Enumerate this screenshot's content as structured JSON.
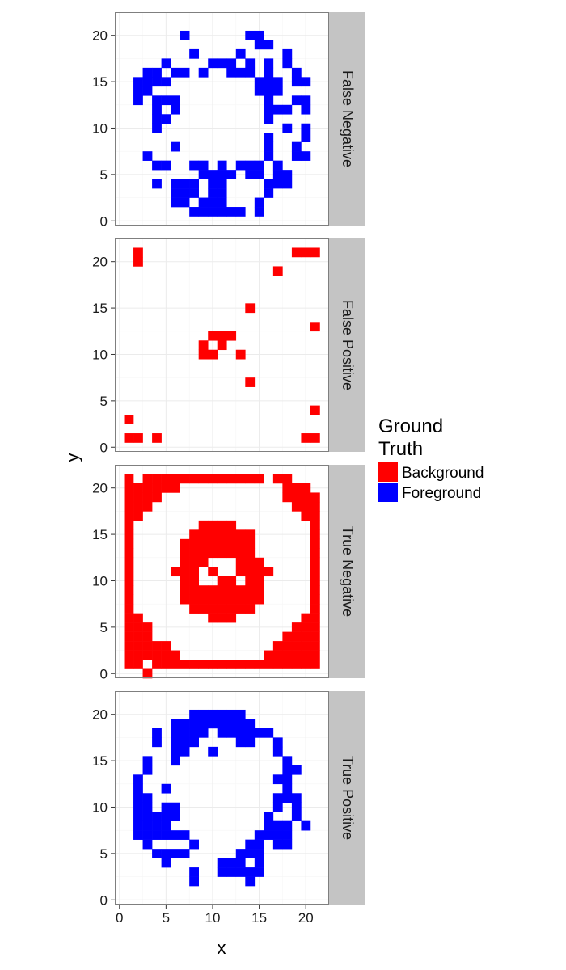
{
  "chart_data": {
    "type": "heatmap",
    "xlabel": "x",
    "ylabel": "y",
    "xlim": [
      -0.5,
      22.5
    ],
    "ylim": [
      -0.5,
      22.5
    ],
    "x_ticks": [
      0,
      5,
      10,
      15,
      20
    ],
    "y_ticks": [
      0,
      5,
      10,
      15,
      20
    ],
    "grid": true,
    "legend": {
      "title": "Ground\nTruth",
      "placement": "right",
      "items": [
        {
          "label": "Background",
          "color": "#ff0000"
        },
        {
          "label": "Foreground",
          "color": "#0000ff"
        }
      ]
    },
    "facets": [
      {
        "label": "False Negative",
        "fill": "Foreground",
        "rows": [
          {
            "y": 20,
            "x": [
              7,
              14,
              15
            ]
          },
          {
            "y": 19,
            "x": [
              15,
              16
            ]
          },
          {
            "y": 18,
            "x": [
              8,
              13,
              18
            ]
          },
          {
            "y": 17,
            "x": [
              5,
              10,
              11,
              12,
              14,
              16,
              18
            ]
          },
          {
            "y": 16,
            "x": [
              3,
              4,
              6,
              7,
              9,
              12,
              13,
              14,
              16,
              19
            ]
          },
          {
            "y": 15,
            "x": [
              2,
              3,
              4,
              5,
              15,
              16,
              17,
              19,
              20
            ]
          },
          {
            "y": 14,
            "x": [
              2,
              3,
              15,
              16,
              17
            ]
          },
          {
            "y": 13,
            "x": [
              2,
              4,
              5,
              6,
              16,
              19,
              20
            ]
          },
          {
            "y": 12,
            "x": [
              4,
              6,
              16,
              17,
              18,
              20
            ]
          },
          {
            "y": 11,
            "x": [
              4,
              5,
              16
            ]
          },
          {
            "y": 10,
            "x": [
              4,
              18,
              20
            ]
          },
          {
            "y": 9,
            "x": [
              16,
              20
            ]
          },
          {
            "y": 8,
            "x": [
              6,
              16,
              19
            ]
          },
          {
            "y": 7,
            "x": [
              3,
              16,
              19,
              20
            ]
          },
          {
            "y": 6,
            "x": [
              4,
              5,
              8,
              9,
              11,
              13,
              14,
              15,
              17
            ]
          },
          {
            "y": 5,
            "x": [
              9,
              10,
              11,
              12,
              14,
              15,
              17,
              18
            ]
          },
          {
            "y": 4,
            "x": [
              4,
              6,
              7,
              8,
              10,
              11,
              16,
              17,
              18
            ]
          },
          {
            "y": 3,
            "x": [
              6,
              7,
              8,
              10,
              11,
              16
            ]
          },
          {
            "y": 2,
            "x": [
              6,
              7,
              9,
              10,
              11,
              15
            ]
          },
          {
            "y": 1,
            "x": [
              8,
              9,
              10,
              11,
              12,
              13,
              15
            ]
          }
        ]
      },
      {
        "label": "False Positive",
        "fill": "Background",
        "rows": [
          {
            "y": 21,
            "x": [
              2,
              19,
              20,
              21
            ]
          },
          {
            "y": 20,
            "x": [
              2
            ]
          },
          {
            "y": 19,
            "x": [
              17
            ]
          },
          {
            "y": 15,
            "x": [
              14
            ]
          },
          {
            "y": 13,
            "x": [
              21
            ]
          },
          {
            "y": 12,
            "x": [
              10,
              11,
              12
            ]
          },
          {
            "y": 11,
            "x": [
              9,
              11
            ]
          },
          {
            "y": 10,
            "x": [
              9,
              10,
              13
            ]
          },
          {
            "y": 7,
            "x": [
              14
            ]
          },
          {
            "y": 4,
            "x": [
              21
            ]
          },
          {
            "y": 3,
            "x": [
              1
            ]
          },
          {
            "y": 1,
            "x": [
              1,
              2,
              4,
              20,
              21
            ]
          }
        ]
      },
      {
        "label": "True Negative",
        "fill": "Background",
        "rows": [
          {
            "y": 21,
            "x": [
              1,
              3,
              4,
              5,
              6,
              7,
              8,
              9,
              10,
              11,
              12,
              13,
              14,
              15,
              17,
              18
            ]
          },
          {
            "y": 20,
            "x": [
              1,
              2,
              3,
              4,
              5,
              6,
              18,
              19,
              20
            ]
          },
          {
            "y": 19,
            "x": [
              1,
              2,
              3,
              4,
              18,
              19,
              20,
              21
            ]
          },
          {
            "y": 18,
            "x": [
              1,
              2,
              3,
              19,
              20,
              21
            ]
          },
          {
            "y": 17,
            "x": [
              1,
              2,
              20,
              21
            ]
          },
          {
            "y": 16,
            "x": [
              1,
              9,
              10,
              11,
              12,
              21
            ]
          },
          {
            "y": 15,
            "x": [
              1,
              8,
              9,
              10,
              11,
              12,
              13,
              14,
              21
            ]
          },
          {
            "y": 14,
            "x": [
              1,
              7,
              8,
              9,
              10,
              11,
              12,
              13,
              14,
              21
            ]
          },
          {
            "y": 13,
            "x": [
              1,
              7,
              8,
              9,
              10,
              11,
              12,
              13,
              14,
              21
            ]
          },
          {
            "y": 12,
            "x": [
              1,
              7,
              8,
              9,
              13,
              14,
              15,
              21
            ]
          },
          {
            "y": 11,
            "x": [
              1,
              6,
              7,
              8,
              10,
              13,
              14,
              15,
              16,
              21
            ]
          },
          {
            "y": 10,
            "x": [
              1,
              7,
              8,
              11,
              12,
              14,
              15,
              21
            ]
          },
          {
            "y": 9,
            "x": [
              1,
              7,
              8,
              9,
              10,
              11,
              12,
              13,
              14,
              15,
              21
            ]
          },
          {
            "y": 8,
            "x": [
              1,
              7,
              8,
              9,
              10,
              11,
              12,
              13,
              14,
              15,
              21
            ]
          },
          {
            "y": 7,
            "x": [
              1,
              8,
              9,
              10,
              11,
              12,
              13,
              14,
              21
            ]
          },
          {
            "y": 6,
            "x": [
              1,
              2,
              10,
              11,
              12,
              20,
              21
            ]
          },
          {
            "y": 5,
            "x": [
              1,
              2,
              3,
              19,
              20,
              21
            ]
          },
          {
            "y": 4,
            "x": [
              1,
              2,
              3,
              18,
              19,
              20,
              21
            ]
          },
          {
            "y": 3,
            "x": [
              1,
              2,
              3,
              4,
              5,
              17,
              18,
              19,
              20,
              21
            ]
          },
          {
            "y": 2,
            "x": [
              1,
              2,
              3,
              4,
              5,
              6,
              16,
              17,
              18,
              19,
              20,
              21
            ]
          },
          {
            "y": 1,
            "x": [
              1,
              2,
              4,
              5,
              6,
              7,
              8,
              9,
              10,
              11,
              12,
              13,
              14,
              15,
              16,
              17,
              18,
              19,
              20,
              21
            ]
          },
          {
            "y": 0,
            "x": [
              3
            ]
          }
        ]
      },
      {
        "label": "True Positive",
        "fill": "Foreground",
        "rows": [
          {
            "y": 20,
            "x": [
              8,
              9,
              10,
              11,
              12,
              13
            ]
          },
          {
            "y": 19,
            "x": [
              6,
              7,
              8,
              9,
              10,
              11,
              12,
              13,
              14
            ]
          },
          {
            "y": 18,
            "x": [
              4,
              6,
              7,
              8,
              9,
              11,
              12,
              13,
              14,
              15,
              16
            ]
          },
          {
            "y": 17,
            "x": [
              4,
              6,
              7,
              8,
              13,
              14,
              17
            ]
          },
          {
            "y": 16,
            "x": [
              6,
              7,
              10,
              17
            ]
          },
          {
            "y": 15,
            "x": [
              3,
              6,
              18
            ]
          },
          {
            "y": 14,
            "x": [
              3,
              18,
              19
            ]
          },
          {
            "y": 13,
            "x": [
              2,
              17,
              18
            ]
          },
          {
            "y": 12,
            "x": [
              2,
              5,
              18
            ]
          },
          {
            "y": 11,
            "x": [
              2,
              3,
              17,
              18,
              19
            ]
          },
          {
            "y": 10,
            "x": [
              2,
              3,
              5,
              6,
              17,
              19
            ]
          },
          {
            "y": 9,
            "x": [
              2,
              3,
              4,
              5,
              6,
              16,
              19
            ]
          },
          {
            "y": 8,
            "x": [
              2,
              3,
              4,
              5,
              16,
              17,
              18,
              20
            ]
          },
          {
            "y": 7,
            "x": [
              2,
              3,
              4,
              5,
              6,
              7,
              15,
              16,
              17,
              18
            ]
          },
          {
            "y": 6,
            "x": [
              3,
              8,
              14,
              15,
              17,
              18
            ]
          },
          {
            "y": 5,
            "x": [
              4,
              5,
              6,
              7,
              13,
              14,
              15
            ]
          },
          {
            "y": 4,
            "x": [
              5,
              11,
              12,
              13,
              15
            ]
          },
          {
            "y": 3,
            "x": [
              8,
              11,
              12,
              13,
              14,
              15
            ]
          },
          {
            "y": 2,
            "x": [
              8,
              14
            ]
          }
        ]
      }
    ]
  }
}
